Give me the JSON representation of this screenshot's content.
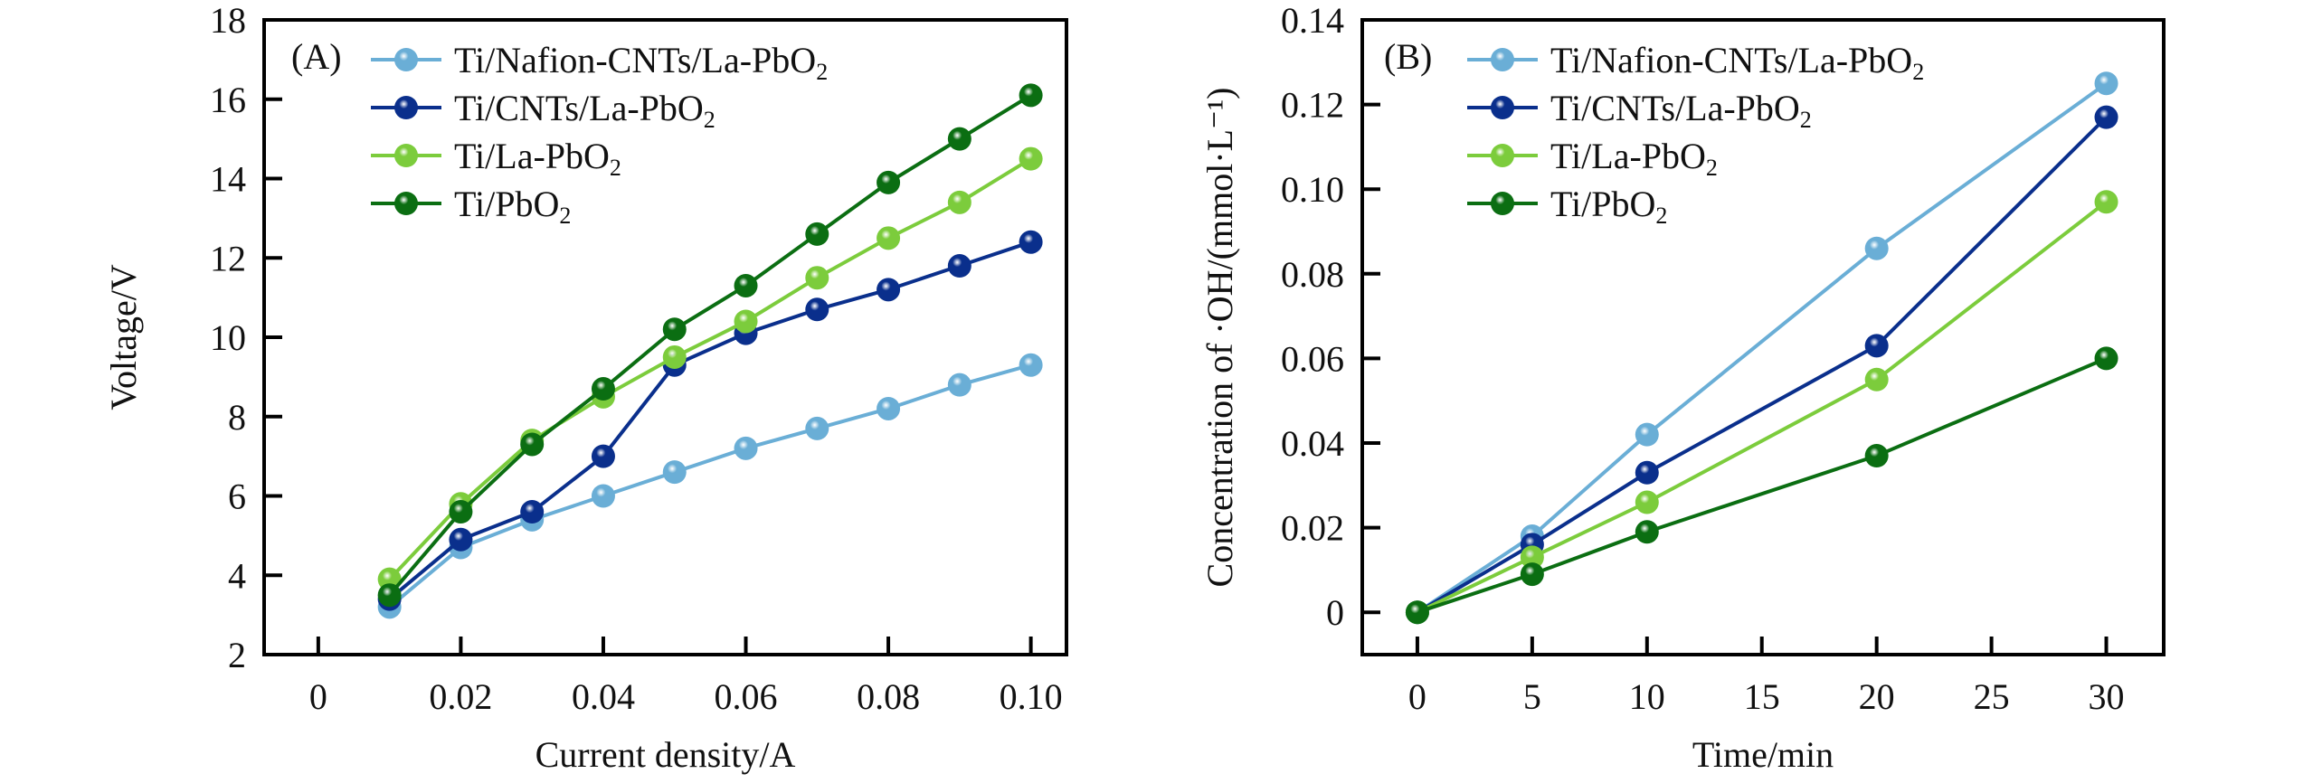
{
  "chart_data": [
    {
      "type": "line",
      "panel_label": "(A)",
      "title": "",
      "xlabel": "Current density/A",
      "ylabel": "Voltage/V",
      "xlim": [
        -0.0076,
        0.105
      ],
      "ylim": [
        2,
        18
      ],
      "xticks": [
        0,
        0.02,
        0.04,
        0.06,
        0.08,
        0.1
      ],
      "xtick_labels": [
        "0",
        "0.02",
        "0.04",
        "0.06",
        "0.08",
        "0.10"
      ],
      "yticks": [
        2,
        4,
        6,
        8,
        10,
        12,
        14,
        16,
        18
      ],
      "ytick_labels": [
        "2",
        "4",
        "6",
        "8",
        "10",
        "12",
        "14",
        "16",
        "18"
      ],
      "grid": false,
      "legend_position": "top-left",
      "x": [
        0.01,
        0.02,
        0.03,
        0.04,
        0.05,
        0.06,
        0.07,
        0.08,
        0.09,
        0.1
      ],
      "series": [
        {
          "name": "Ti/Nafion-CNTs/La-PbO2",
          "label_main": "Ti/Nafion-CNTs/La-PbO",
          "label_sub": "2",
          "color": "#6aaed6",
          "values": [
            3.2,
            4.7,
            5.4,
            6.0,
            6.6,
            7.2,
            7.7,
            8.2,
            8.8,
            9.3
          ]
        },
        {
          "name": "Ti/CNTs/La-PbO2",
          "label_main": "Ti/CNTs/La-PbO",
          "label_sub": "2",
          "color": "#0a2f8c",
          "values": [
            3.4,
            4.9,
            5.6,
            7.0,
            9.3,
            10.1,
            10.7,
            11.2,
            11.8,
            12.4
          ]
        },
        {
          "name": "Ti/La-PbO2",
          "label_main": "Ti/La-PbO",
          "label_sub": "2",
          "color": "#7ccc3c",
          "values": [
            3.9,
            5.8,
            7.4,
            8.5,
            9.5,
            10.4,
            11.5,
            12.5,
            13.4,
            14.5
          ]
        },
        {
          "name": "Ti/PbO2",
          "label_main": "Ti/PbO",
          "label_sub": "2",
          "color": "#0b6e12",
          "values": [
            3.5,
            5.6,
            7.3,
            8.7,
            10.2,
            11.3,
            12.6,
            13.9,
            15.0,
            16.1
          ]
        }
      ]
    },
    {
      "type": "line",
      "panel_label": "(B)",
      "title": "",
      "xlabel": "Time/min",
      "ylabel": "Concentration of ·OH/(mmol·L⁻¹)",
      "xlim": [
        -2.4,
        32.5
      ],
      "ylim": [
        -0.01,
        0.14
      ],
      "xticks": [
        0,
        5,
        10,
        15,
        20,
        25,
        30
      ],
      "xtick_labels": [
        "0",
        "5",
        "10",
        "15",
        "20",
        "25",
        "30"
      ],
      "yticks": [
        0,
        0.02,
        0.04,
        0.06,
        0.08,
        0.1,
        0.12,
        0.14
      ],
      "ytick_labels": [
        "0",
        "0.02",
        "0.04",
        "0.06",
        "0.08",
        "0.10",
        "0.12",
        "0.14"
      ],
      "grid": false,
      "legend_position": "top-left",
      "x": [
        0,
        5,
        10,
        20,
        30
      ],
      "series": [
        {
          "name": "Ti/Nafion-CNTs/La-PbO2",
          "label_main": "Ti/Nafion-CNTs/La-PbO",
          "label_sub": "2",
          "color": "#6aaed6",
          "values": [
            0,
            0.018,
            0.042,
            0.086,
            0.125
          ]
        },
        {
          "name": "Ti/CNTs/La-PbO2",
          "label_main": "Ti/CNTs/La-PbO",
          "label_sub": "2",
          "color": "#0a2f8c",
          "values": [
            0,
            0.016,
            0.033,
            0.063,
            0.117
          ]
        },
        {
          "name": "Ti/La-PbO2",
          "label_main": "Ti/La-PbO",
          "label_sub": "2",
          "color": "#7ccc3c",
          "values": [
            0,
            0.013,
            0.026,
            0.055,
            0.097
          ]
        },
        {
          "name": "Ti/PbO2",
          "label_main": "Ti/PbO",
          "label_sub": "2",
          "color": "#0b6e12",
          "values": [
            0,
            0.009,
            0.019,
            0.037,
            0.06
          ]
        }
      ]
    }
  ]
}
